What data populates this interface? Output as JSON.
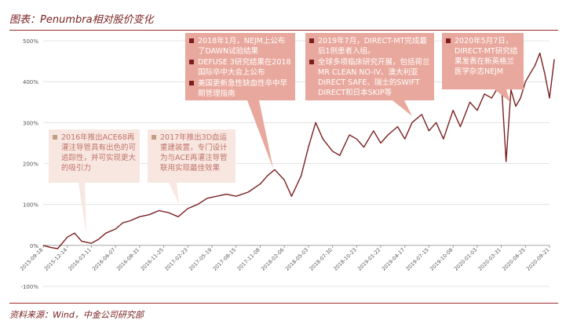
{
  "title": "图表：Penumbra相对股价变化",
  "source": "资料来源：Wind，中金公司研究部",
  "annotations": [
    {
      "id": "a2016",
      "items": [
        "2016年推出ACE68再灌注导管具有出色的可追踪性，并可实现更大的吸引力"
      ]
    },
    {
      "id": "a2017",
      "items": [
        "2017年推出3D血运重建装置，专门设计为与ACE再灌注导管联用实现最佳效果"
      ]
    },
    {
      "id": "a2018",
      "items": [
        "2018年1月，NEJM上公布了DAWN试验结果",
        "DEFUSE 3研究结果在2018国际卒中大会上公布",
        "美国更新急性缺血性卒中早期管理指南"
      ]
    },
    {
      "id": "a2019",
      "items": [
        "2019年7月，DIRECT-MT完成最后1例患者入组。",
        "全球多项临床研究开展，包括荷兰MR CLEAN NO-IV、澳大利亚DIRECT SAFE、瑞士的SWIFT DIRECT和日本SKIP等"
      ]
    },
    {
      "id": "a2020",
      "items": [
        "2020年5月7日，DIRECT-MT研究结果发表在新英格兰医学杂志NEJM"
      ]
    }
  ],
  "chart_data": {
    "type": "line",
    "color": "#7a1f1f",
    "y_ticks": [
      "500%",
      "400%",
      "300%",
      "200%",
      "100%",
      "0%",
      "-100%"
    ],
    "ylim": [
      -100,
      500
    ],
    "x_ticks": [
      "2015-09-18",
      "2015-12-14",
      "2016-03-11",
      "2016-06-07",
      "2016-08-31",
      "2016-11-25",
      "2017-02-23",
      "2017-05-19",
      "2017-08-15",
      "2017-11-08",
      "2018-02-06",
      "2018-05-03",
      "2018-07-30",
      "2018-10-23",
      "2019-01-22",
      "2019-04-17",
      "2019-07-15",
      "2019-10-08",
      "2020-01-03",
      "2020-03-31",
      "2020-06-25",
      "2020-09-21"
    ],
    "series": [
      {
        "x": [
          0,
          0.3,
          0.6,
          1.0,
          1.3,
          1.6,
          2.0,
          2.3,
          2.6,
          3.0,
          3.3,
          3.6,
          4.0,
          4.4,
          4.8,
          5.2,
          5.6,
          6.0,
          6.4,
          6.8,
          7.2,
          7.6,
          8.0,
          8.5,
          9.0,
          9.3,
          9.6,
          10.0,
          10.3,
          10.7,
          11.0,
          11.3,
          11.6,
          12.0,
          12.3,
          12.7,
          13.0,
          13.3,
          13.7,
          14.0,
          14.3,
          14.7,
          15.0,
          15.3,
          15.7,
          16.0,
          16.3,
          16.6,
          17.0,
          17.3,
          17.7,
          18.0,
          18.3,
          18.6,
          19.0,
          19.2,
          19.4,
          19.6,
          19.8,
          20.0,
          20.2,
          20.4,
          20.6,
          20.8,
          21.0,
          21.2
        ],
        "values": [
          0,
          -5,
          -8,
          20,
          30,
          10,
          5,
          15,
          30,
          40,
          55,
          60,
          70,
          75,
          85,
          80,
          70,
          90,
          100,
          115,
          120,
          125,
          120,
          130,
          150,
          170,
          185,
          160,
          120,
          170,
          240,
          300,
          260,
          230,
          220,
          270,
          260,
          240,
          280,
          250,
          270,
          290,
          260,
          300,
          320,
          280,
          300,
          260,
          330,
          290,
          350,
          330,
          370,
          360,
          400,
          205,
          380,
          340,
          360,
          400,
          420,
          440,
          470,
          420,
          360,
          455
        ]
      }
    ]
  }
}
